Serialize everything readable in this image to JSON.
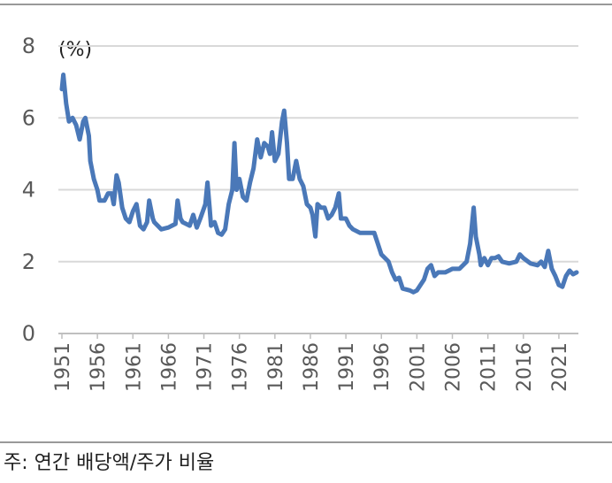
{
  "chart_data": {
    "type": "line",
    "annotation": "(%)",
    "note": "주: 연간 배당액/주가 비율",
    "x": [
      1951,
      1951.2,
      1951.6,
      1952,
      1952.5,
      1953,
      1953.5,
      1954,
      1954.3,
      1954.8,
      1955,
      1955.5,
      1956,
      1956.3,
      1957,
      1957.5,
      1958,
      1958.3,
      1958.7,
      1959,
      1959.5,
      1960,
      1960.5,
      1961,
      1961.5,
      1962,
      1962.5,
      1963,
      1963.3,
      1963.8,
      1964,
      1965,
      1966,
      1966.5,
      1967,
      1967.3,
      1967.7,
      1968,
      1969,
      1969.5,
      1970,
      1970.5,
      1971.2,
      1971.5,
      1971.8,
      1972,
      1972.5,
      1973,
      1973.5,
      1974,
      1974.5,
      1975,
      1975.3,
      1975.6,
      1976,
      1976.5,
      1977,
      1977.5,
      1978,
      1978.5,
      1979,
      1979.5,
      1980,
      1980.3,
      1980.6,
      1981,
      1981.5,
      1982,
      1982.3,
      1982.7,
      1983,
      1983.5,
      1984,
      1984.5,
      1985,
      1985.5,
      1986,
      1986.3,
      1986.7,
      1987,
      1987.5,
      1988,
      1988.5,
      1989,
      1989.5,
      1990,
      1990.3,
      1991,
      1991.5,
      1992,
      1993,
      1994,
      1995,
      1995.5,
      1996,
      1997,
      1997.5,
      1998,
      1998.5,
      1999,
      2000,
      2000.5,
      2001,
      2002,
      2002.5,
      2003,
      2003.5,
      2004,
      2005,
      2006,
      2007,
      2008,
      2008.5,
      2009,
      2009.3,
      2009.8,
      2010,
      2010.5,
      2011,
      2011.5,
      2012,
      2012.5,
      2013,
      2014,
      2015,
      2015.5,
      2016,
      2017,
      2018,
      2018.5,
      2019,
      2019.5,
      2020,
      2020.5,
      2021,
      2021.5,
      2022,
      2022.5,
      2023,
      2023.5
    ],
    "series": [
      {
        "color": "#4a78b8",
        "values": [
          6.8,
          7.2,
          6.4,
          5.9,
          6.0,
          5.8,
          5.4,
          5.9,
          6.0,
          5.5,
          4.8,
          4.3,
          4.0,
          3.7,
          3.7,
          3.9,
          3.9,
          3.6,
          4.4,
          4.2,
          3.5,
          3.2,
          3.1,
          3.4,
          3.6,
          3.0,
          2.9,
          3.1,
          3.7,
          3.2,
          3.1,
          2.9,
          2.95,
          3.0,
          3.05,
          3.7,
          3.2,
          3.1,
          3.0,
          3.3,
          2.95,
          3.2,
          3.6,
          4.2,
          3.5,
          3.0,
          3.1,
          2.8,
          2.75,
          2.9,
          3.6,
          4.0,
          5.3,
          4.0,
          4.3,
          3.8,
          3.7,
          4.2,
          4.6,
          5.4,
          4.9,
          5.3,
          5.2,
          5.0,
          5.6,
          4.8,
          5.0,
          5.9,
          6.2,
          5.3,
          4.3,
          4.3,
          4.8,
          4.3,
          4.1,
          3.6,
          3.5,
          3.3,
          2.7,
          3.6,
          3.5,
          3.5,
          3.2,
          3.3,
          3.5,
          3.9,
          3.2,
          3.2,
          3.0,
          2.9,
          2.8,
          2.8,
          2.8,
          2.5,
          2.2,
          2.0,
          1.7,
          1.5,
          1.55,
          1.25,
          1.2,
          1.15,
          1.2,
          1.5,
          1.8,
          1.9,
          1.6,
          1.7,
          1.7,
          1.8,
          1.8,
          2.0,
          2.5,
          3.5,
          2.7,
          2.2,
          1.9,
          2.1,
          1.9,
          2.1,
          2.1,
          2.15,
          2.0,
          1.95,
          2.0,
          2.2,
          2.1,
          1.95,
          1.9,
          2.0,
          1.85,
          2.3,
          1.8,
          1.6,
          1.35,
          1.3,
          1.6,
          1.75,
          1.65,
          1.7
        ]
      }
    ],
    "xlim": [
      1951,
      2023.5
    ],
    "xticks": [
      1951,
      1956,
      1961,
      1966,
      1971,
      1976,
      1981,
      1986,
      1991,
      1996,
      2001,
      2006,
      2011,
      2016,
      2021
    ],
    "ylim": [
      0,
      8
    ],
    "yticks": [
      0,
      2,
      4,
      6,
      8
    ],
    "grid": true
  }
}
